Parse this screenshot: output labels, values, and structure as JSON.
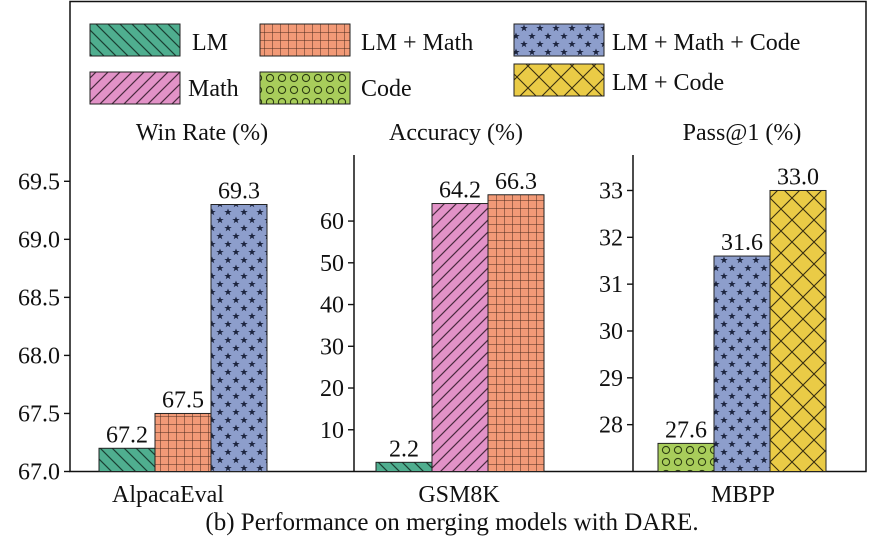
{
  "caption": "(b) Performance on merging models with DARE.",
  "legend": [
    {
      "key": "lm",
      "label": "LM",
      "color": "#4fae8f",
      "pattern": "back-diagonal"
    },
    {
      "key": "lm_math",
      "label": "LM + Math",
      "color": "#f29a77",
      "pattern": "grid"
    },
    {
      "key": "lm_math_code",
      "label": "LM + Math + Code",
      "color": "#8d9ecc",
      "pattern": "stars"
    },
    {
      "key": "math",
      "label": "Math",
      "color": "#e292c7",
      "pattern": "forward-diagonal"
    },
    {
      "key": "code",
      "label": "Code",
      "color": "#a8cd5b",
      "pattern": "circles"
    },
    {
      "key": "lm_code",
      "label": "LM + Code",
      "color": "#eacb46",
      "pattern": "crosshatch"
    }
  ],
  "chart_data": [
    {
      "type": "bar",
      "title": "Win Rate (%)",
      "xlabel": "AlpacaEval",
      "ylim": [
        67.0,
        69.75
      ],
      "yticks": [
        "67.0",
        "67.5",
        "68.0",
        "68.5",
        "69.0",
        "69.5"
      ],
      "series": [
        {
          "name": "LM",
          "key": "lm",
          "value": 67.2,
          "label": "67.2"
        },
        {
          "name": "LM + Math",
          "key": "lm_math",
          "value": 67.5,
          "label": "67.5"
        },
        {
          "name": "LM + Math + Code",
          "key": "lm_math_code",
          "value": 69.3,
          "label": "69.3"
        }
      ]
    },
    {
      "type": "bar",
      "title": "Accuracy (%)",
      "xlabel": "GSM8K",
      "ylim": [
        0,
        70
      ],
      "yticks": [
        "10",
        "20",
        "30",
        "40",
        "50",
        "60"
      ],
      "series": [
        {
          "name": "LM",
          "key": "lm",
          "value": 2.2,
          "label": "2.2"
        },
        {
          "name": "Math",
          "key": "math",
          "value": 64.2,
          "label": "64.2"
        },
        {
          "name": "LM + Math",
          "key": "lm_math",
          "value": 66.3,
          "label": "66.3"
        }
      ]
    },
    {
      "type": "bar",
      "title": "Pass@1 (%)",
      "xlabel": "MBPP",
      "ylim": [
        27.0,
        34.0
      ],
      "yticks": [
        "28",
        "29",
        "30",
        "31",
        "32",
        "33"
      ],
      "series": [
        {
          "name": "Code",
          "key": "code",
          "value": 27.6,
          "label": "27.6"
        },
        {
          "name": "LM + Math + Code",
          "key": "lm_math_code",
          "value": 31.6,
          "label": "31.6"
        },
        {
          "name": "LM + Code",
          "key": "lm_code",
          "value": 33.0,
          "label": "33.0"
        }
      ]
    }
  ]
}
